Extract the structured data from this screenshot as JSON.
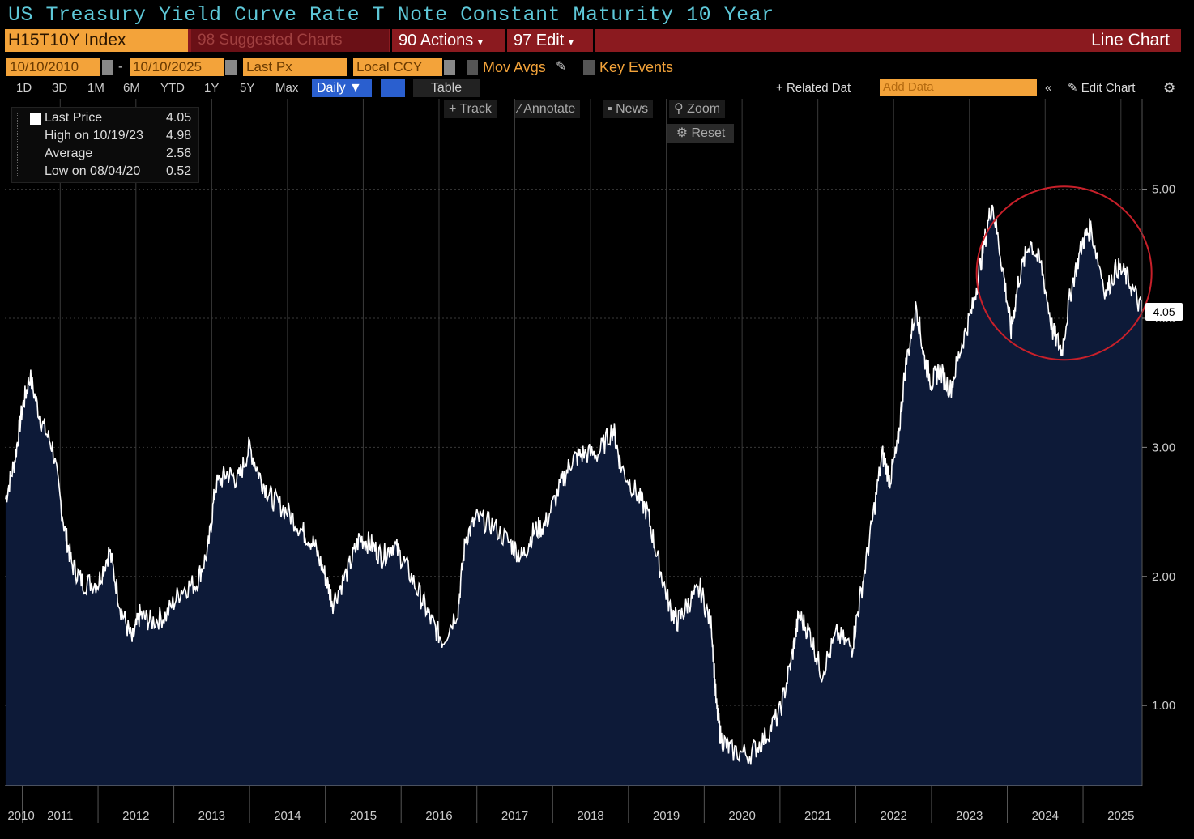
{
  "title": "US Treasury Yield Curve Rate T Note Constant Maturity 10 Year",
  "toolbar": {
    "ticker": "H15T10Y Index",
    "suggested": "98 Suggested Charts",
    "actions": "90 Actions",
    "edit": "97 Edit",
    "chart_type": "Line Chart"
  },
  "controls": {
    "start_date": "10/10/2010",
    "end_date": "10/10/2025",
    "field": "Last Px",
    "currency": "Local CCY",
    "mov_avgs": "Mov Avgs",
    "key_events": "Key Events",
    "periods": [
      "1D",
      "3D",
      "1M",
      "6M",
      "YTD",
      "1Y",
      "5Y",
      "Max"
    ],
    "frequency": "Daily",
    "table": "Table",
    "related": "Related Dat",
    "add_data": "Add Data",
    "edit_chart": "Edit Chart",
    "tools": [
      "Track",
      "Annotate",
      "News",
      "Zoom"
    ],
    "reset": "Reset"
  },
  "legend": {
    "items": [
      {
        "label": "Last Price",
        "value": "4.05"
      },
      {
        "label": "High on 10/19/23",
        "value": "4.98"
      },
      {
        "label": "Average",
        "value": "2.56"
      },
      {
        "label": "Low on 08/04/20",
        "value": "0.52"
      }
    ]
  },
  "colors": {
    "fill": "#0d1a38",
    "line": "#ffffff",
    "circle": "#c8202a",
    "accent": "#f3a33a"
  },
  "chart_data": {
    "type": "area",
    "ylim": [
      0.38,
      5.7
    ],
    "yticks": [
      1.0,
      2.0,
      3.0,
      4.0,
      5.0
    ],
    "ytick_labels": [
      "1.00",
      "2.00",
      "3.00",
      "4.00",
      "5.00"
    ],
    "xlim": [
      2010.77,
      2025.78
    ],
    "xtick_labels": [
      "2010",
      "2011",
      "2012",
      "2013",
      "2014",
      "2015",
      "2016",
      "2017",
      "2018",
      "2019",
      "2020",
      "2021",
      "2022",
      "2023",
      "2024",
      "2025"
    ],
    "last_value_label": "4.05",
    "series": [
      {
        "x": [
          2010.78,
          2010.9,
          2011.0,
          2011.1,
          2011.25,
          2011.4,
          2011.55,
          2011.65,
          2011.8,
          2012.0,
          2012.15,
          2012.3,
          2012.45,
          2012.55,
          2012.7,
          2012.9,
          2013.1,
          2013.3,
          2013.45,
          2013.55,
          2013.7,
          2013.85,
          2014.0,
          2014.15,
          2014.3,
          2014.5,
          2014.7,
          2014.85,
          2015.0,
          2015.1,
          2015.3,
          2015.45,
          2015.6,
          2015.75,
          2015.9,
          2016.05,
          2016.25,
          2016.4,
          2016.55,
          2016.75,
          2016.85,
          2017.0,
          2017.2,
          2017.45,
          2017.6,
          2017.75,
          2017.9,
          2018.1,
          2018.25,
          2018.4,
          2018.6,
          2018.8,
          2018.9,
          2019.1,
          2019.25,
          2019.4,
          2019.55,
          2019.65,
          2019.8,
          2019.95,
          2020.1,
          2020.16,
          2020.22,
          2020.35,
          2020.6,
          2020.8,
          2021.0,
          2021.15,
          2021.25,
          2021.4,
          2021.55,
          2021.75,
          2021.95,
          2022.05,
          2022.2,
          2022.35,
          2022.45,
          2022.55,
          2022.65,
          2022.8,
          2022.9,
          2023.0,
          2023.1,
          2023.25,
          2023.4,
          2023.55,
          2023.67,
          2023.8,
          2023.95,
          2024.05,
          2024.15,
          2024.3,
          2024.45,
          2024.6,
          2024.72,
          2024.85,
          2025.0,
          2025.1,
          2025.3,
          2025.45,
          2025.6,
          2025.78
        ],
        "y": [
          2.6,
          2.9,
          3.3,
          3.55,
          3.2,
          3.0,
          2.4,
          2.1,
          1.95,
          1.95,
          2.2,
          1.75,
          1.5,
          1.7,
          1.65,
          1.7,
          1.9,
          1.95,
          2.2,
          2.7,
          2.8,
          2.75,
          3.0,
          2.75,
          2.6,
          2.5,
          2.35,
          2.25,
          2.0,
          1.8,
          2.05,
          2.3,
          2.25,
          2.15,
          2.25,
          2.1,
          1.85,
          1.65,
          1.5,
          1.75,
          2.3,
          2.45,
          2.4,
          2.25,
          2.15,
          2.35,
          2.4,
          2.7,
          2.9,
          2.95,
          2.95,
          3.15,
          2.85,
          2.65,
          2.5,
          2.1,
          1.75,
          1.65,
          1.8,
          1.9,
          1.6,
          1.0,
          0.75,
          0.65,
          0.62,
          0.75,
          0.95,
          1.35,
          1.7,
          1.55,
          1.25,
          1.55,
          1.45,
          1.8,
          2.35,
          2.95,
          2.75,
          3.0,
          3.6,
          4.1,
          3.7,
          3.5,
          3.6,
          3.45,
          3.8,
          4.1,
          4.5,
          4.9,
          4.35,
          3.9,
          4.3,
          4.6,
          4.4,
          3.9,
          3.75,
          4.25,
          4.6,
          4.7,
          4.2,
          4.4,
          4.3,
          4.05
        ],
        "name": "Last Price"
      }
    ]
  }
}
